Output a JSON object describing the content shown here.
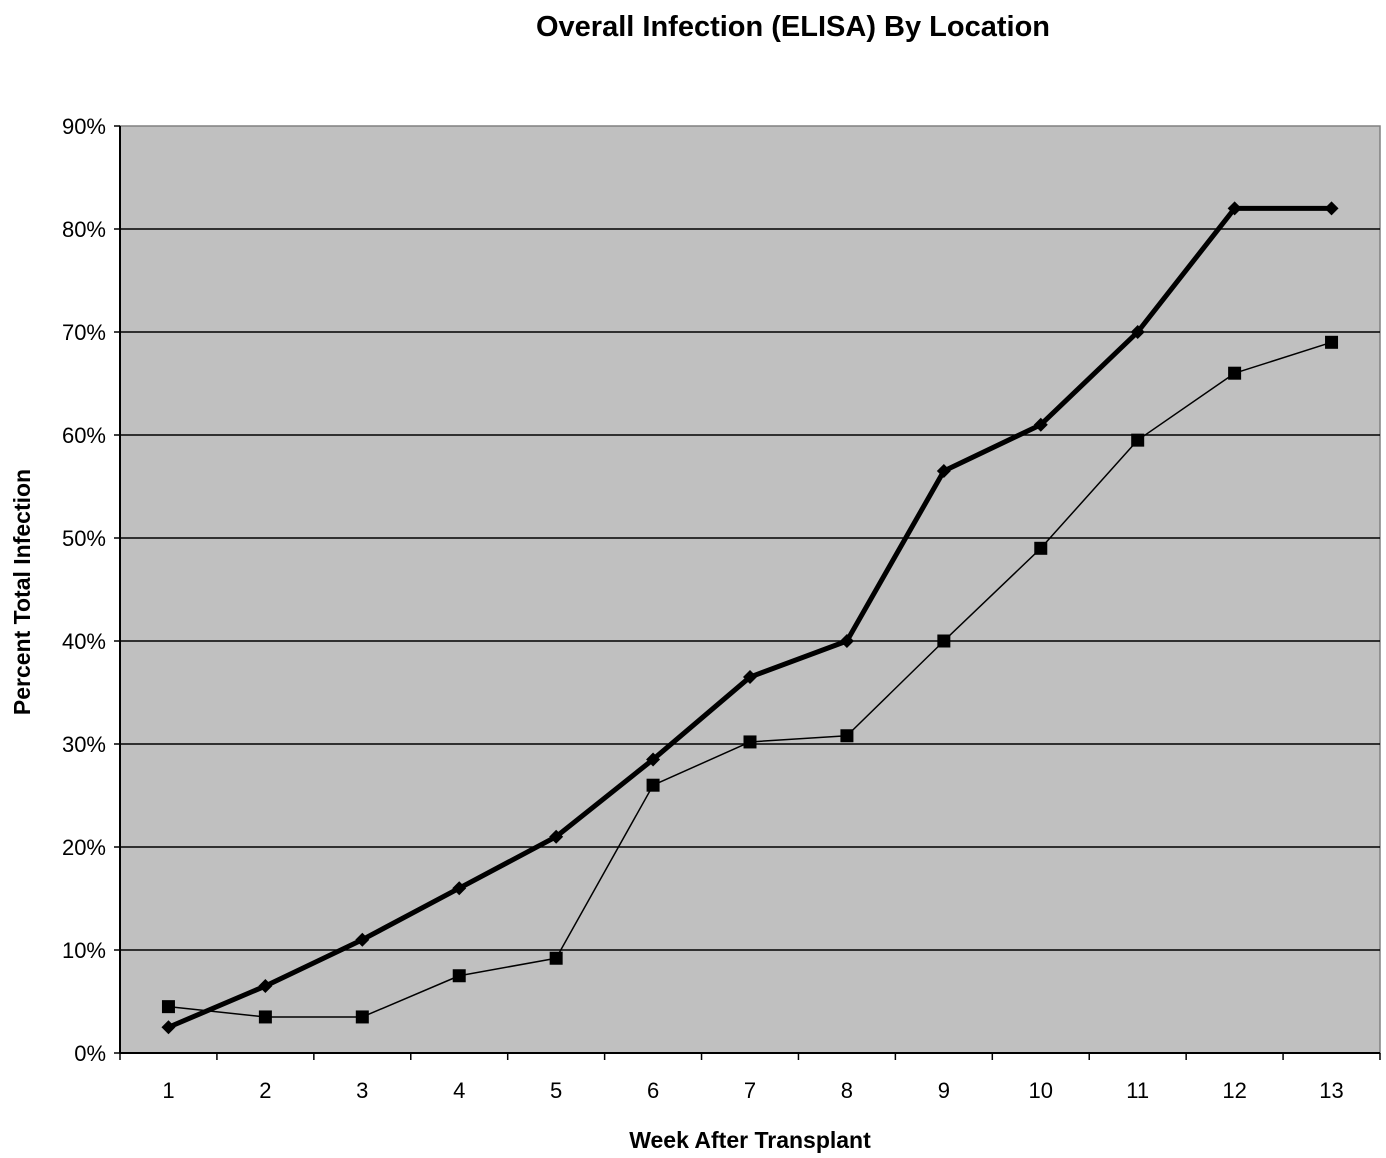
{
  "chart_data": {
    "type": "line",
    "title": "Overall Infection (ELISA) By Location",
    "xlabel": "Week After Transplant",
    "ylabel": "Percent Total Infection",
    "categories": [
      "1",
      "2",
      "3",
      "4",
      "5",
      "6",
      "7",
      "8",
      "9",
      "10",
      "11",
      "12",
      "13"
    ],
    "y_ticks": [
      "0%",
      "10%",
      "20%",
      "30%",
      "40%",
      "50%",
      "60%",
      "70%",
      "80%",
      "90%"
    ],
    "ylim": [
      0,
      90
    ],
    "grid": "horizontal",
    "legend": "none",
    "plot_background": "#c0c0c0",
    "series": [
      {
        "marker": "diamond",
        "line_style": "thick",
        "color": "#000000",
        "values": [
          2.5,
          6.5,
          11,
          16,
          21,
          28.5,
          36.5,
          40,
          56.5,
          61,
          70,
          82,
          82
        ]
      },
      {
        "marker": "square",
        "line_style": "thin",
        "color": "#000000",
        "values": [
          4.5,
          3.5,
          3.5,
          7.5,
          9.2,
          26,
          30.2,
          30.8,
          40,
          49,
          59.5,
          66,
          69
        ]
      }
    ]
  }
}
